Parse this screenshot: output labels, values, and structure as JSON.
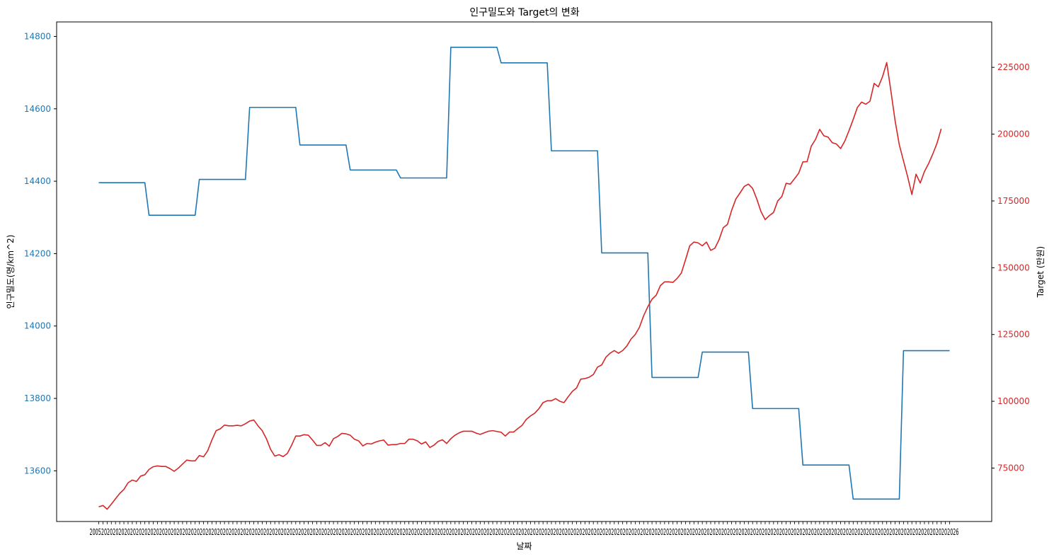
{
  "chart_data": {
    "type": "line",
    "title": "인구밀도와 Target의 변화",
    "xlabel": "날짜",
    "x_tick_labels_overlapping": true,
    "x_tick_first_text": "2005",
    "x_tick_last_text": "6",
    "num_points": 204,
    "left_axis": {
      "label": "인구밀도(명/km^2)",
      "color": "#1f77b4",
      "ylim": [
        13460,
        14840
      ],
      "ticks": [
        13600,
        13800,
        14000,
        14200,
        14400,
        14600,
        14800
      ]
    },
    "right_axis": {
      "label": "Target (만원)",
      "color": "#d62728",
      "ylim": [
        55000,
        242000
      ],
      "ticks": [
        75000,
        100000,
        125000,
        150000,
        175000,
        200000,
        225000
      ]
    },
    "series": [
      {
        "axis": "left",
        "color": "#1f77b4",
        "segments": [
          {
            "from": 0,
            "to": 11,
            "value": 14396
          },
          {
            "from": 12,
            "to": 23,
            "value": 14306
          },
          {
            "from": 24,
            "to": 35,
            "value": 14405
          },
          {
            "from": 36,
            "to": 47,
            "value": 14604
          },
          {
            "from": 48,
            "to": 59,
            "value": 14500
          },
          {
            "from": 60,
            "to": 71,
            "value": 14431
          },
          {
            "from": 72,
            "to": 83,
            "value": 14409
          },
          {
            "from": 84,
            "to": 95,
            "value": 14770
          },
          {
            "from": 96,
            "to": 107,
            "value": 14727
          },
          {
            "from": 108,
            "to": 119,
            "value": 14484
          },
          {
            "from": 120,
            "to": 131,
            "value": 14202
          },
          {
            "from": 132,
            "to": 143,
            "value": 13858
          },
          {
            "from": 144,
            "to": 155,
            "value": 13928
          },
          {
            "from": 156,
            "to": 167,
            "value": 13772
          },
          {
            "from": 168,
            "to": 179,
            "value": 13616
          },
          {
            "from": 180,
            "to": 191,
            "value": 13522
          },
          {
            "from": 192,
            "to": 203,
            "value": 13932
          }
        ]
      },
      {
        "axis": "right",
        "color": "#d62728",
        "values": [
          60500,
          61000,
          59600,
          61500,
          63500,
          65500,
          67000,
          69500,
          70500,
          70000,
          72000,
          72500,
          74500,
          75500,
          75800,
          75600,
          75600,
          74800,
          73800,
          75000,
          76500,
          78000,
          77700,
          77700,
          79700,
          79200,
          81500,
          85500,
          89000,
          89700,
          91100,
          90800,
          90800,
          91000,
          90800,
          91600,
          92600,
          93000,
          90800,
          89000,
          86000,
          82000,
          79500,
          80000,
          79300,
          80500,
          83500,
          87000,
          87000,
          87500,
          87300,
          85500,
          83500,
          83500,
          84500,
          83200,
          86000,
          86800,
          88000,
          87800,
          87300,
          85800,
          85200,
          83300,
          84200,
          84000,
          84700,
          85200,
          85500,
          83600,
          83800,
          83800,
          84200,
          84200,
          85800,
          85800,
          85200,
          84000,
          84800,
          82700,
          83600,
          85000,
          85600,
          84200,
          86000,
          87300,
          88200,
          88800,
          88800,
          88800,
          88100,
          87600,
          88200,
          88800,
          89000,
          88700,
          88400,
          87000,
          88500,
          88500,
          89800,
          91000,
          93200,
          94500,
          95500,
          97200,
          99500,
          100200,
          100200,
          101000,
          100000,
          99500,
          101700,
          103700,
          105000,
          108300,
          108500,
          109000,
          110000,
          112800,
          113600,
          116500,
          118000,
          119000,
          118000,
          119000,
          120700,
          123300,
          125000,
          127700,
          132000,
          135400,
          138200,
          139700,
          143300,
          144700,
          144700,
          144500,
          146000,
          148000,
          153000,
          158200,
          159600,
          159300,
          158200,
          159600,
          156500,
          157300,
          160500,
          165000,
          166200,
          171500,
          175700,
          178000,
          180400,
          181300,
          179700,
          175700,
          171000,
          168000,
          169500,
          170700,
          175000,
          176700,
          181600,
          181300,
          183300,
          185400,
          189600,
          189700,
          195500,
          198000,
          201800,
          199400,
          198900,
          196800,
          196300,
          194600,
          197400,
          201300,
          205500,
          210000,
          212000,
          211200,
          212300,
          219000,
          217700,
          221500,
          226800,
          216100,
          205000,
          196000,
          190000,
          184000,
          177400,
          185000,
          181700,
          186000,
          189000,
          192600,
          196600,
          202000
        ]
      }
    ]
  }
}
